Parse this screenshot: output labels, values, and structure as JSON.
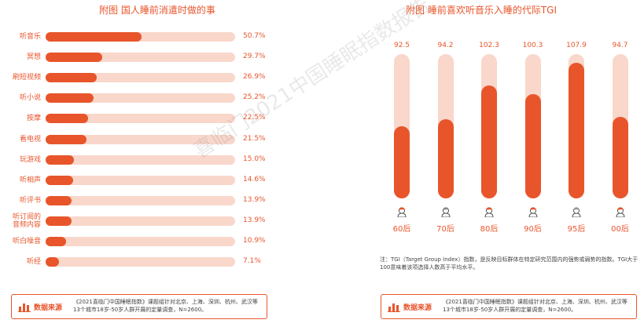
{
  "colors": {
    "accent": "#e8552b",
    "track": "#f9d7cb"
  },
  "left_title": "附图 国人睡前消遣时做的事",
  "right_title": "附图 睡前喜欢听音乐入睡的代际TGI",
  "watermark": "喜临门2021中国睡眠指数报告",
  "note": "注：TGI（Target Group Index）指数，是反映目标群体在特定研究范围内的强势或弱势的指数。TGI大于100意味着该项选择人数高于平均水平。",
  "source": {
    "label": "数据来源",
    "icon": "bar-chart-icon",
    "text": "《2021喜临门中国睡眠指数》课题组针对北京、上海、深圳、杭州、武汉等13个城市18岁-50岁人群开展的定量调查，N=2600。"
  },
  "chart_data": [
    {
      "type": "bar",
      "orientation": "horizontal",
      "title": "附图 国人睡前消遣时做的事",
      "categories": [
        "听音乐",
        "冥想",
        "刷短视频",
        "听小说",
        "按摩",
        "看电视",
        "玩游戏",
        "听相声",
        "听评书",
        "听订阅的音频内容",
        "听白噪音",
        "听经"
      ],
      "category_lines": [
        [
          "听音乐"
        ],
        [
          "冥想"
        ],
        [
          "刷短视频"
        ],
        [
          "听小说"
        ],
        [
          "按摩"
        ],
        [
          "看电视"
        ],
        [
          "玩游戏"
        ],
        [
          "听相声"
        ],
        [
          "听评书"
        ],
        [
          "听订阅的",
          "音频内容"
        ],
        [
          "听白噪音"
        ],
        [
          "听经"
        ]
      ],
      "values": [
        50.7,
        29.7,
        26.9,
        25.2,
        22.5,
        21.5,
        15.0,
        14.6,
        13.9,
        13.9,
        10.9,
        7.1
      ],
      "value_labels": [
        "50.7%",
        "29.7%",
        "26.9%",
        "25.2%",
        "22.5%",
        "21.5%",
        "15.0%",
        "14.6%",
        "13.9%",
        "13.9%",
        "10.9%",
        "7.1%"
      ],
      "xlim": [
        0,
        100
      ]
    },
    {
      "type": "bar",
      "orientation": "vertical",
      "title": "附图 睡前喜欢听音乐入睡的代际TGI",
      "categories": [
        "60后",
        "70后",
        "80后",
        "90后",
        "95后",
        "00后"
      ],
      "values": [
        92.5,
        94.2,
        102.3,
        100.3,
        107.9,
        94.7
      ],
      "value_labels": [
        "92.5",
        "94.2",
        "102.3",
        "100.3",
        "107.9",
        "94.7"
      ],
      "avatars": [
        "person-60s-icon",
        "person-70s-icon",
        "person-80s-icon",
        "person-90s-icon",
        "person-95s-icon",
        "person-00s-icon"
      ],
      "ylim": [
        75,
        110
      ]
    }
  ]
}
